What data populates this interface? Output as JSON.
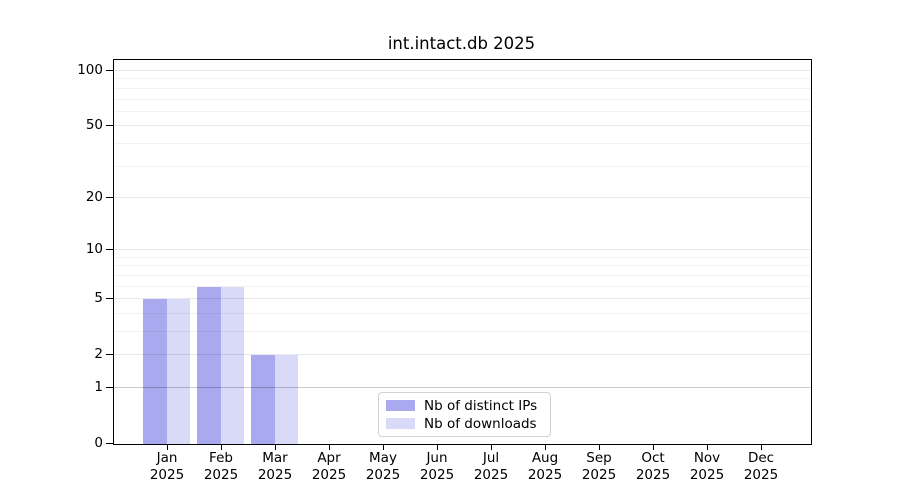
{
  "chart_data": {
    "type": "bar",
    "title": "int.intact.db 2025",
    "categories": [
      "Jan 2025",
      "Feb 2025",
      "Mar 2025",
      "Apr 2025",
      "May 2025",
      "Jun 2025",
      "Jul 2025",
      "Aug 2025",
      "Sep 2025",
      "Oct 2025",
      "Nov 2025",
      "Dec 2025"
    ],
    "x_tick_months": [
      "Jan",
      "Feb",
      "Mar",
      "Apr",
      "May",
      "Jun",
      "Jul",
      "Aug",
      "Sep",
      "Oct",
      "Nov",
      "Dec"
    ],
    "x_tick_year": "2025",
    "series": [
      {
        "name": "Nb of distinct IPs",
        "color": "#a9a9f0",
        "values": [
          5,
          6,
          2,
          0,
          0,
          0,
          0,
          0,
          0,
          0,
          0,
          0
        ]
      },
      {
        "name": "Nb of downloads",
        "color": "#d9d9f8",
        "values": [
          5,
          6,
          2,
          0,
          0,
          0,
          0,
          0,
          0,
          0,
          0,
          0
        ]
      }
    ],
    "yscale": "log1p",
    "ylim": [
      0,
      100
    ],
    "yticks": [
      0,
      1,
      2,
      5,
      10,
      20,
      50,
      100
    ],
    "ytick_labels": [
      "0",
      "1",
      "2",
      "5",
      "10",
      "20",
      "50",
      "100"
    ],
    "minor_gridline_values": [
      3,
      4,
      6,
      7,
      8,
      9,
      30,
      40,
      60,
      70,
      80,
      90
    ],
    "grid": "horizontal",
    "legend_position": "lower center"
  }
}
